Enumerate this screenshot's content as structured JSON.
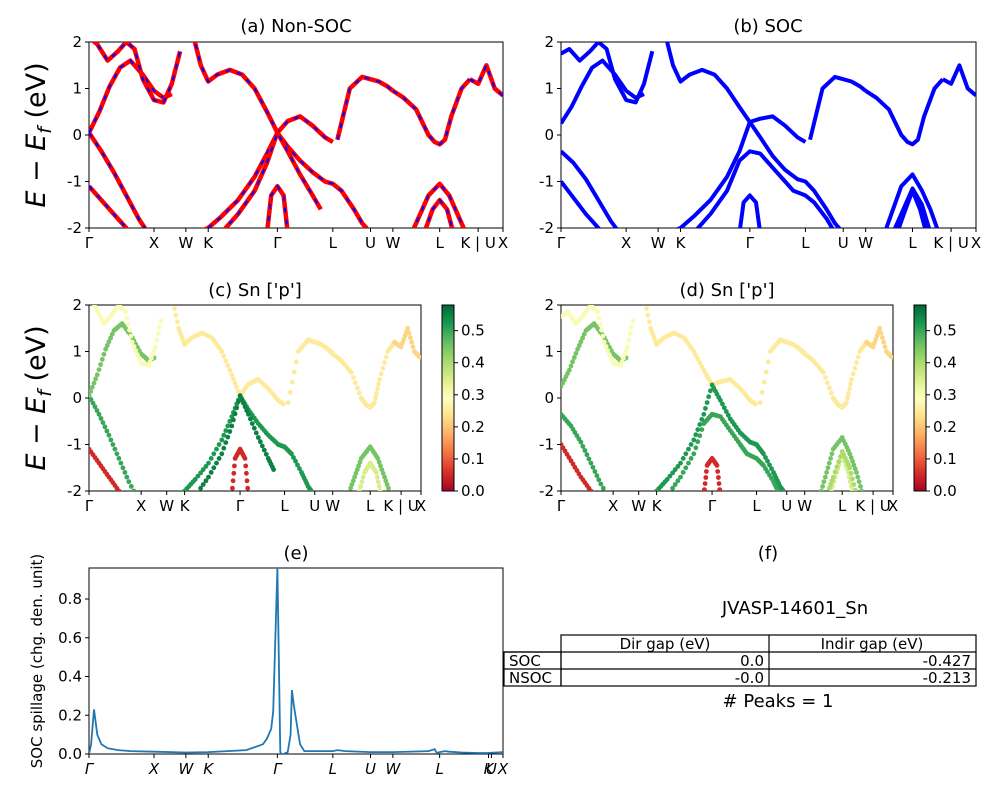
{
  "colors": {
    "nonsoc_primary": "#ff0000",
    "nonsoc_dash": "#0000ff",
    "soc_band": "#0000ff",
    "spillage_line": "#1f77b4",
    "cbar_low": "#a50026",
    "cbar_mid": "#ffffbf",
    "cbar_high": "#006837"
  },
  "band_ylabel_parts": [
    "E",
    " − ",
    "E",
    "f",
    " (eV)"
  ],
  "spillage_ylabel": "SOC spillage (chg. den. unit)",
  "kpath_labels": [
    "Γ",
    "X",
    "W",
    "K",
    "Γ",
    "L",
    "U",
    "W",
    "L",
    "K | U",
    "X"
  ],
  "kpath_positions": [
    0,
    0.157,
    0.234,
    0.288,
    0.455,
    0.589,
    0.68,
    0.734,
    0.847,
    0.94,
    1.0
  ],
  "panels": {
    "a": {
      "title": "(a) Non-SOC"
    },
    "b": {
      "title": "(b) SOC"
    },
    "c": {
      "title": "(c)  Sn ['p']"
    },
    "d": {
      "title": "(d) Sn ['p']"
    },
    "e": {
      "title": "(e)"
    },
    "f": {
      "title": "(f)"
    }
  },
  "colorbar": {
    "ticks": [
      "0.0",
      "0.1",
      "0.2",
      "0.3",
      "0.4",
      "0.5"
    ],
    "max": 0.58
  },
  "table": {
    "material": "JVASP-14601_Sn",
    "col_headers": [
      "Dir gap (eV)",
      "Indir gap (eV)"
    ],
    "rows": [
      {
        "label": "SOC",
        "dir": "0.0",
        "indir": "-0.427"
      },
      {
        "label": "NSOC",
        "dir": "-0.0",
        "indir": "-0.213"
      }
    ],
    "peaks": "# Peaks = 1"
  },
  "chart_data": [
    {
      "type": "line",
      "panel": "a",
      "title": "(a) Non-SOC",
      "ylabel": "E − E_f (eV)",
      "ylim": [
        -2,
        2
      ],
      "yticks": [
        -2,
        -1,
        0,
        1,
        2
      ],
      "xlabel_ticks": [
        "Γ",
        "X",
        "W",
        "K",
        "Γ",
        "L",
        "U",
        "W",
        "L",
        "K | U",
        "X"
      ],
      "series": [
        {
          "name": "band1",
          "x": [
            0,
            0.03,
            0.06,
            0.09,
            0.12,
            0.157
          ],
          "y": [
            -1.1,
            -1.4,
            -1.7,
            -2.0,
            -2.3,
            -2.6
          ]
        },
        {
          "name": "band2",
          "x": [
            0,
            0.03,
            0.06,
            0.09,
            0.12,
            0.157,
            0.2,
            0.234,
            0.27,
            0.288
          ],
          "y": [
            0.05,
            -0.35,
            -0.8,
            -1.3,
            -1.8,
            -2.3,
            -2.5,
            -2.4,
            -2.2,
            -2.1
          ]
        },
        {
          "name": "band3",
          "x": [
            0,
            0.025,
            0.05,
            0.075,
            0.1,
            0.13,
            0.157,
            0.18,
            0.2
          ],
          "y": [
            0.05,
            0.5,
            1.05,
            1.45,
            1.6,
            1.3,
            0.95,
            0.8,
            0.88
          ]
        },
        {
          "name": "band4",
          "x": [
            0,
            0.02,
            0.045,
            0.07,
            0.09,
            0.11,
            0.13,
            0.157,
            0.18,
            0.2,
            0.22
          ],
          "y": [
            2.1,
            1.95,
            1.6,
            1.8,
            2.0,
            1.85,
            1.2,
            0.75,
            0.7,
            1.1,
            1.8
          ]
        },
        {
          "name": "band5",
          "x": [
            0.25,
            0.27,
            0.288,
            0.31,
            0.34,
            0.37,
            0.4,
            0.43,
            0.455,
            0.48,
            0.51,
            0.54,
            0.57,
            0.589
          ],
          "y": [
            2.2,
            1.5,
            1.15,
            1.3,
            1.4,
            1.3,
            1.0,
            0.5,
            0.05,
            0.3,
            0.4,
            0.2,
            -0.05,
            -0.15
          ]
        },
        {
          "name": "band6",
          "x": [
            0.26,
            0.288,
            0.32,
            0.36,
            0.4,
            0.43,
            0.455,
            0.48,
            0.51,
            0.54,
            0.57,
            0.589,
            0.61,
            0.64,
            0.66,
            0.68
          ],
          "y": [
            -2.1,
            -2.0,
            -1.75,
            -1.4,
            -0.9,
            -0.4,
            0.05,
            -0.25,
            -0.55,
            -0.8,
            -1.0,
            -1.05,
            -1.2,
            -1.6,
            -1.9,
            -2.1
          ]
        },
        {
          "name": "band7",
          "x": [
            0.32,
            0.36,
            0.4,
            0.43,
            0.455,
            0.48,
            0.51,
            0.54,
            0.56
          ],
          "y": [
            -2.1,
            -1.7,
            -1.2,
            -0.6,
            0.05,
            -0.35,
            -0.85,
            -1.3,
            -1.6
          ]
        },
        {
          "name": "band8",
          "x": [
            0.43,
            0.44,
            0.455,
            0.47,
            0.48
          ],
          "y": [
            -2.1,
            -1.3,
            -1.1,
            -1.3,
            -2.1
          ]
        },
        {
          "name": "band9",
          "x": [
            0.6,
            0.63,
            0.66,
            0.68,
            0.7,
            0.72,
            0.734
          ],
          "y": [
            -0.1,
            1.0,
            1.25,
            1.2,
            1.15,
            1.05,
            0.95
          ]
        },
        {
          "name": "band10",
          "x": [
            0.734,
            0.76,
            0.79,
            0.82,
            0.835,
            0.847,
            0.86,
            0.875,
            0.9,
            0.92
          ],
          "y": [
            0.95,
            0.8,
            0.55,
            0.0,
            -0.15,
            -0.2,
            -0.1,
            0.4,
            1.0,
            1.2
          ]
        },
        {
          "name": "band11",
          "x": [
            0.92,
            0.94,
            0.96,
            0.98,
            1.0
          ],
          "y": [
            1.2,
            1.1,
            1.5,
            1.0,
            0.85
          ]
        },
        {
          "name": "band12",
          "x": [
            0.78,
            0.8,
            0.82,
            0.847,
            0.87,
            0.89,
            0.91
          ],
          "y": [
            -2.1,
            -1.7,
            -1.3,
            -1.05,
            -1.3,
            -1.7,
            -2.1
          ]
        },
        {
          "name": "band13",
          "x": [
            0.81,
            0.83,
            0.847,
            0.865,
            0.88
          ],
          "y": [
            -2.1,
            -1.6,
            -1.4,
            -1.6,
            -2.1
          ]
        }
      ]
    },
    {
      "type": "line",
      "panel": "b",
      "title": "(b) SOC",
      "ylim": [
        -2,
        2
      ],
      "yticks": [
        -2,
        -1,
        0,
        1,
        2
      ],
      "xlabel_ticks": [
        "Γ",
        "X",
        "W",
        "K",
        "Γ",
        "L",
        "U",
        "W",
        "L",
        "K | U",
        "X"
      ],
      "series": [
        {
          "name": "band1",
          "x": [
            0,
            0.03,
            0.06,
            0.09,
            0.12,
            0.157
          ],
          "y": [
            -1.0,
            -1.35,
            -1.7,
            -2.0,
            -2.3,
            -2.6
          ]
        },
        {
          "name": "band2",
          "x": [
            0,
            0.03,
            0.06,
            0.09,
            0.12,
            0.157,
            0.2,
            0.234,
            0.27,
            0.288
          ],
          "y": [
            -0.35,
            -0.6,
            -0.95,
            -1.4,
            -1.85,
            -2.3,
            -2.5,
            -2.4,
            -2.2,
            -2.1
          ]
        },
        {
          "name": "band3",
          "x": [
            0,
            0.025,
            0.05,
            0.075,
            0.1,
            0.13,
            0.157,
            0.18,
            0.2
          ],
          "y": [
            0.25,
            0.6,
            1.05,
            1.45,
            1.6,
            1.3,
            0.95,
            0.8,
            0.88
          ]
        },
        {
          "name": "band4",
          "x": [
            0,
            0.02,
            0.045,
            0.07,
            0.09,
            0.11,
            0.13,
            0.157,
            0.18,
            0.2,
            0.22
          ],
          "y": [
            1.75,
            1.85,
            1.6,
            1.8,
            2.0,
            1.85,
            1.2,
            0.75,
            0.7,
            1.1,
            1.8
          ]
        },
        {
          "name": "band5",
          "x": [
            0.25,
            0.27,
            0.288,
            0.31,
            0.34,
            0.37,
            0.4,
            0.43,
            0.455,
            0.48,
            0.51,
            0.54,
            0.57,
            0.589
          ],
          "y": [
            2.2,
            1.5,
            1.15,
            1.3,
            1.4,
            1.3,
            1.0,
            0.6,
            0.28,
            0.35,
            0.4,
            0.2,
            -0.05,
            -0.15
          ]
        },
        {
          "name": "band6",
          "x": [
            0.26,
            0.288,
            0.32,
            0.36,
            0.4,
            0.43,
            0.455,
            0.48,
            0.51,
            0.54,
            0.57,
            0.589,
            0.61,
            0.64,
            0.66,
            0.68
          ],
          "y": [
            -2.1,
            -2.0,
            -1.75,
            -1.4,
            -0.9,
            -0.35,
            0.28,
            -0.05,
            -0.45,
            -0.75,
            -0.95,
            -1.0,
            -1.2,
            -1.6,
            -1.9,
            -2.1
          ]
        },
        {
          "name": "band7",
          "x": [
            0.32,
            0.36,
            0.4,
            0.43,
            0.455,
            0.48,
            0.51,
            0.54,
            0.56,
            0.589,
            0.61,
            0.64,
            0.66
          ],
          "y": [
            -2.1,
            -1.7,
            -1.2,
            -0.55,
            -0.35,
            -0.4,
            -0.7,
            -1.0,
            -1.2,
            -1.3,
            -1.45,
            -1.8,
            -2.1
          ]
        },
        {
          "name": "band8",
          "x": [
            0.43,
            0.44,
            0.455,
            0.47,
            0.48
          ],
          "y": [
            -2.1,
            -1.45,
            -1.3,
            -1.45,
            -2.1
          ]
        },
        {
          "name": "band9",
          "x": [
            0.6,
            0.63,
            0.66,
            0.68,
            0.7,
            0.72,
            0.734
          ],
          "y": [
            -0.1,
            1.0,
            1.25,
            1.2,
            1.15,
            1.05,
            0.95
          ]
        },
        {
          "name": "band10",
          "x": [
            0.734,
            0.76,
            0.79,
            0.82,
            0.835,
            0.847,
            0.86,
            0.875,
            0.9,
            0.92
          ],
          "y": [
            0.95,
            0.8,
            0.55,
            0.0,
            -0.15,
            -0.2,
            -0.1,
            0.4,
            1.0,
            1.2
          ]
        },
        {
          "name": "band11",
          "x": [
            0.92,
            0.94,
            0.96,
            0.98,
            1.0
          ],
          "y": [
            1.2,
            1.1,
            1.5,
            1.0,
            0.85
          ]
        },
        {
          "name": "band12",
          "x": [
            0.78,
            0.8,
            0.82,
            0.847,
            0.87,
            0.89,
            0.91
          ],
          "y": [
            -2.1,
            -1.6,
            -1.1,
            -0.85,
            -1.2,
            -1.6,
            -2.1
          ]
        },
        {
          "name": "band13",
          "x": [
            0.81,
            0.83,
            0.847,
            0.865,
            0.88
          ],
          "y": [
            -2.1,
            -1.6,
            -1.2,
            -1.6,
            -2.1
          ]
        },
        {
          "name": "band14",
          "x": [
            0.8,
            0.82,
            0.847,
            0.87,
            0.89
          ],
          "y": [
            -2.1,
            -1.7,
            -1.15,
            -1.5,
            -2.1
          ]
        }
      ]
    },
    {
      "type": "scatter",
      "panel": "c",
      "title": "(c)  Sn ['p']",
      "ylim": [
        -2,
        2
      ],
      "colorbar_range": [
        0,
        0.58
      ],
      "note": "points sampled along the Non-SOC bands; colour = Sn p-orbital weight",
      "weights": {
        "band1": 0.05,
        "band2": 0.5,
        "band3": 0.45,
        "band4": 0.3,
        "band5": 0.25,
        "band6": 0.52,
        "band7": 0.55,
        "band8": 0.05,
        "band9": 0.25,
        "band10": 0.25,
        "band11": 0.22,
        "band12": 0.45,
        "band13": 0.35
      }
    },
    {
      "type": "scatter",
      "panel": "d",
      "title": "(d) Sn ['p']",
      "ylim": [
        -2,
        2
      ],
      "colorbar_range": [
        0,
        0.58
      ],
      "note": "points sampled along the SOC bands; colour = Sn p-orbital weight",
      "weights": {
        "band1": 0.05,
        "band2": 0.5,
        "band3": 0.45,
        "band4": 0.3,
        "band5": 0.25,
        "band6": 0.52,
        "band7": 0.5,
        "band8": 0.05,
        "band9": 0.25,
        "band10": 0.25,
        "band11": 0.22,
        "band12": 0.45,
        "band13": 0.35,
        "band14": 0.4
      }
    },
    {
      "type": "line",
      "panel": "e",
      "title": "(e)",
      "ylabel": "SOC spillage (chg. den. unit)",
      "ylim": [
        0,
        0.96
      ],
      "yticks": [
        0.0,
        0.2,
        0.4,
        0.6,
        0.8
      ],
      "xlabel_ticks": [
        "Γ",
        "X",
        "W",
        "K",
        "Γ",
        "L",
        "U",
        "W",
        "L",
        "K",
        "U",
        "X"
      ],
      "x": [
        0,
        0.005,
        0.012,
        0.02,
        0.03,
        0.045,
        0.07,
        0.1,
        0.157,
        0.234,
        0.288,
        0.38,
        0.42,
        0.43,
        0.44,
        0.445,
        0.455,
        0.462,
        0.465,
        0.47,
        0.48,
        0.487,
        0.49,
        0.495,
        0.5,
        0.51,
        0.52,
        0.55,
        0.589,
        0.6,
        0.62,
        0.68,
        0.734,
        0.82,
        0.835,
        0.84,
        0.847,
        0.86,
        0.87,
        0.9,
        0.94,
        0.96,
        1.0
      ],
      "y": [
        0.0,
        0.05,
        0.23,
        0.1,
        0.05,
        0.03,
        0.02,
        0.015,
        0.012,
        0.008,
        0.01,
        0.02,
        0.05,
        0.08,
        0.13,
        0.22,
        0.96,
        0.01,
        0.0,
        0.0,
        0.01,
        0.1,
        0.33,
        0.25,
        0.18,
        0.05,
        0.015,
        0.015,
        0.015,
        0.02,
        0.015,
        0.01,
        0.01,
        0.015,
        0.025,
        0.005,
        0.01,
        0.015,
        0.012,
        0.008,
        0.005,
        0.005,
        0.01
      ]
    }
  ]
}
